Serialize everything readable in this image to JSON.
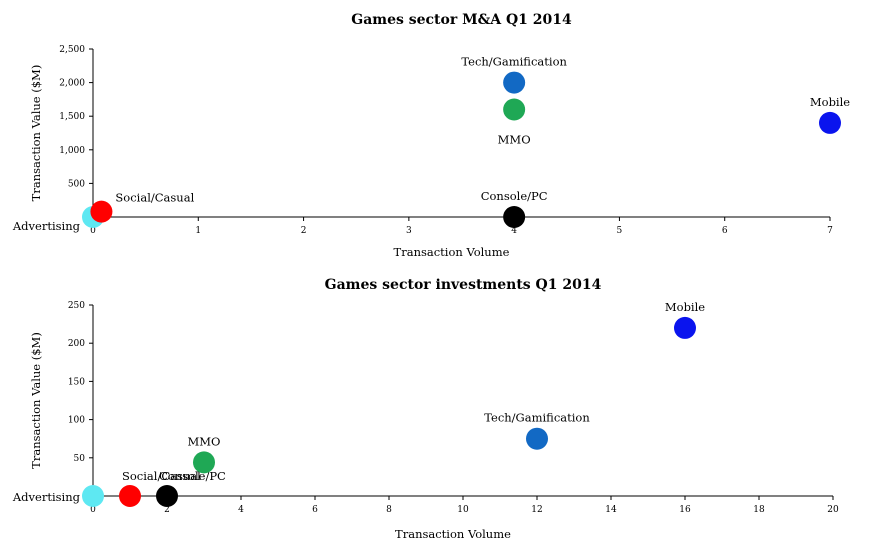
{
  "chart_data": [
    {
      "type": "scatter",
      "title": "Games sector M&A Q1 2014",
      "xlabel": "Transaction Volume",
      "ylabel": "Transaction Value ($M)",
      "xlim": [
        0,
        7
      ],
      "ylim": [
        0,
        2500
      ],
      "xticks": [
        0,
        1,
        2,
        3,
        4,
        5,
        6,
        7
      ],
      "xtick_labels": [
        "0",
        "1",
        "2",
        "3",
        "4",
        "5",
        "6",
        "7"
      ],
      "yticks": [
        0,
        500,
        1000,
        1500,
        2000,
        2500
      ],
      "ytick_labels": [
        "-",
        "500",
        "1,000",
        "1,500",
        "2,000",
        "2,500"
      ],
      "points": [
        {
          "label": "Advertising",
          "x": 0,
          "y": 0,
          "color": "#5ee8f2",
          "label_pos": "left"
        },
        {
          "label": "Social/Casual",
          "x": 0.08,
          "y": 80,
          "color": "#ff0000",
          "label_pos": "upper-right"
        },
        {
          "label": "Console/PC",
          "x": 4,
          "y": 0,
          "color": "#000000",
          "label_pos": "above"
        },
        {
          "label": "MMO",
          "x": 4,
          "y": 1600,
          "color": "#1fa855",
          "label_pos": "below"
        },
        {
          "label": "Tech/Gamification",
          "x": 4,
          "y": 2000,
          "color": "#1269c4",
          "label_pos": "above"
        },
        {
          "label": "Mobile",
          "x": 7,
          "y": 1400,
          "color": "#0a14ee",
          "label_pos": "above"
        }
      ]
    },
    {
      "type": "scatter",
      "title": "Games sector investments Q1 2014",
      "xlabel": "Transaction Volume",
      "ylabel": "Transaction Value ($M)",
      "xlim": [
        0,
        20
      ],
      "ylim": [
        0,
        250
      ],
      "xticks": [
        0,
        2,
        4,
        6,
        8,
        10,
        12,
        14,
        16,
        18,
        20
      ],
      "xtick_labels": [
        "0",
        "2",
        "4",
        "6",
        "8",
        "10",
        "12",
        "14",
        "16",
        "18",
        "20"
      ],
      "yticks": [
        0,
        50,
        100,
        150,
        200,
        250
      ],
      "ytick_labels": [
        "-",
        "50",
        "100",
        "150",
        "200",
        "250"
      ],
      "points": [
        {
          "label": "Advertising",
          "x": 0,
          "y": 0,
          "color": "#5ee8f2",
          "label_pos": "left"
        },
        {
          "label": "Social/Casual",
          "x": 1,
          "y": 0,
          "color": "#ff0000",
          "label_pos": "upper-right"
        },
        {
          "label": "Console/PC",
          "x": 2,
          "y": 0,
          "color": "#000000",
          "label_pos": "upper-right"
        },
        {
          "label": "MMO",
          "x": 3,
          "y": 44,
          "color": "#1fa855",
          "label_pos": "above"
        },
        {
          "label": "Tech/Gamification",
          "x": 12,
          "y": 75,
          "color": "#1269c4",
          "label_pos": "above"
        },
        {
          "label": "Mobile",
          "x": 16,
          "y": 220,
          "color": "#0a14ee",
          "label_pos": "above"
        }
      ]
    }
  ]
}
